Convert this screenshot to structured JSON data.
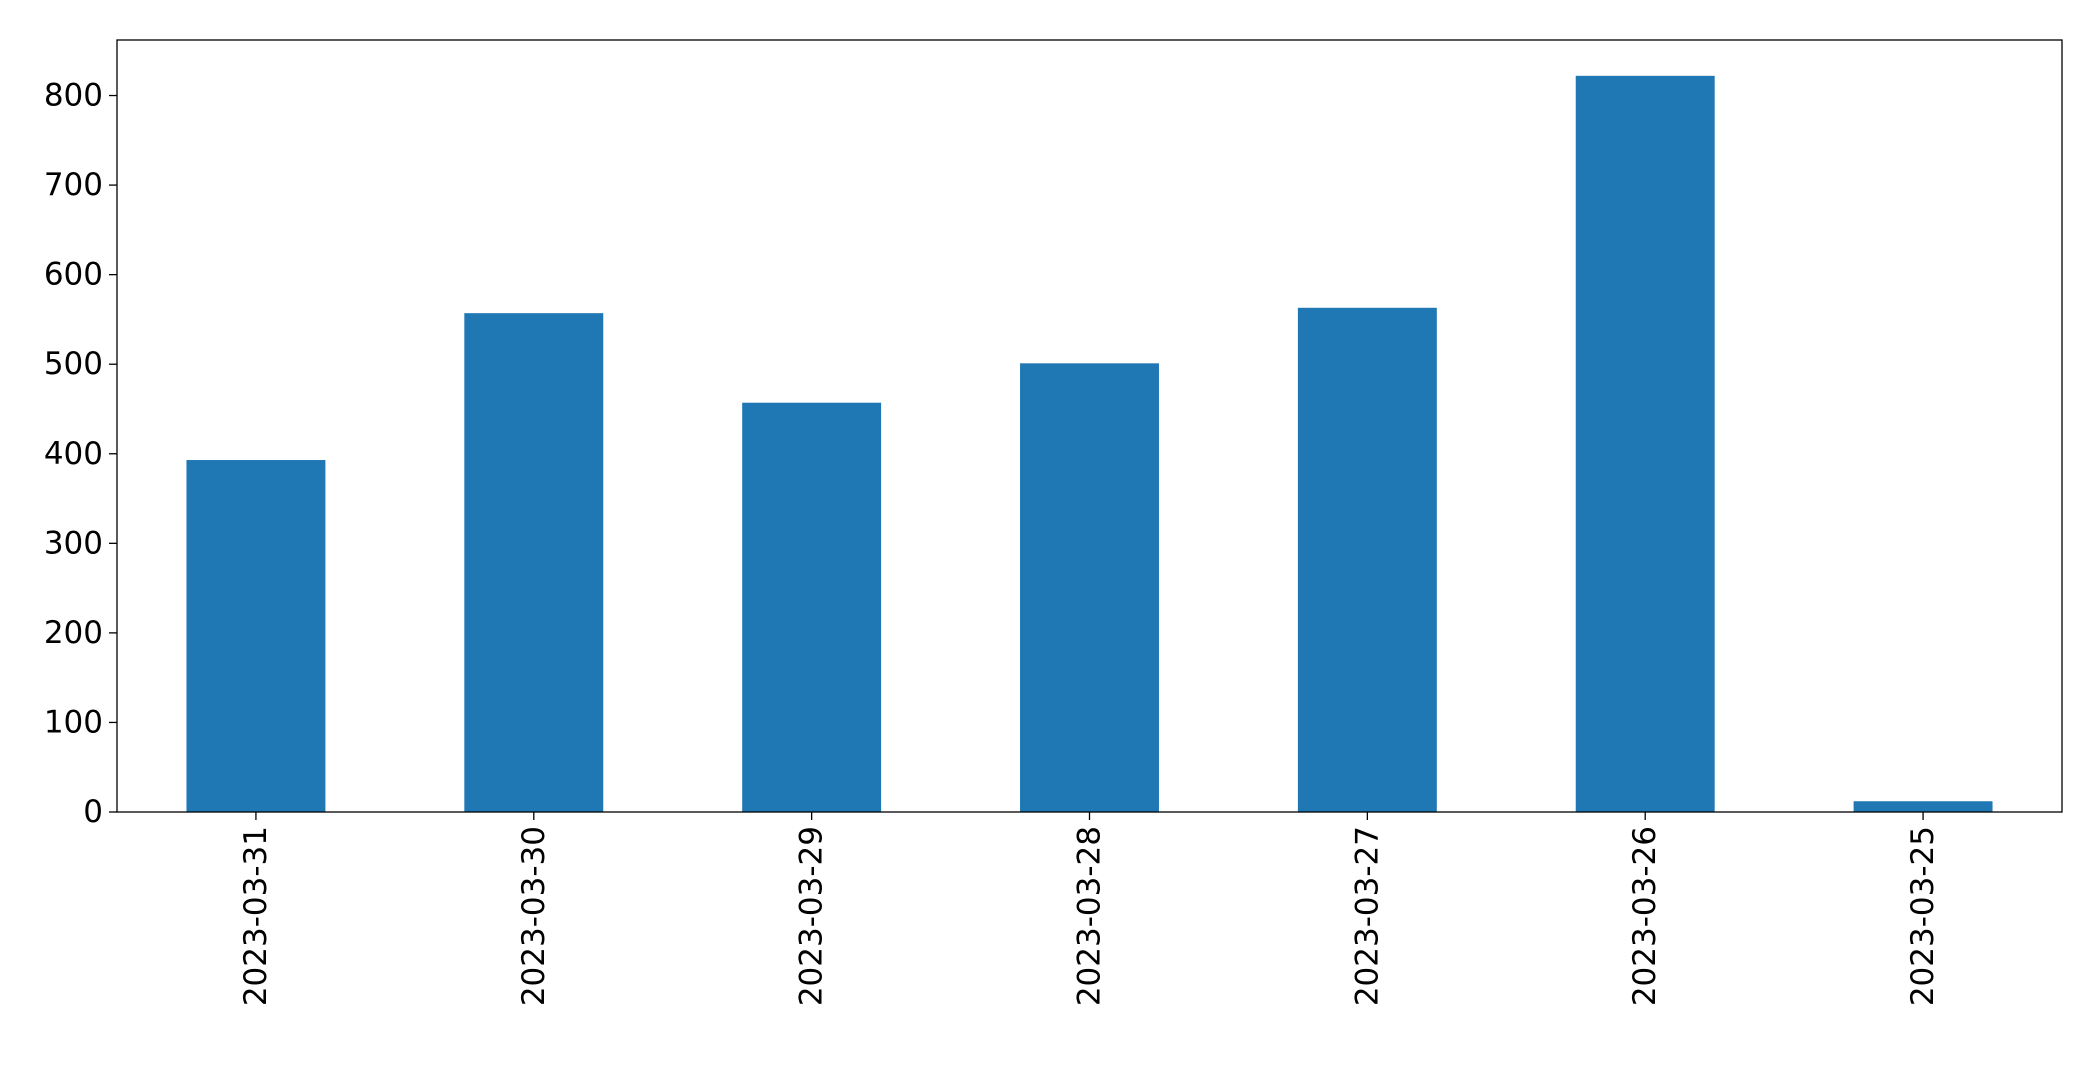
{
  "chart_data": {
    "type": "bar",
    "title": "",
    "xlabel": "",
    "ylabel": "",
    "categories": [
      "2023-03-31",
      "2023-03-30",
      "2023-03-29",
      "2023-03-28",
      "2023-03-27",
      "2023-03-26",
      "2023-03-25"
    ],
    "values": [
      393,
      557,
      457,
      501,
      563,
      822,
      12
    ],
    "ylim": [
      0,
      862
    ],
    "yticks": [
      0,
      100,
      200,
      300,
      400,
      500,
      600,
      700,
      800
    ],
    "ytick_labels": [
      "0",
      "100",
      "200",
      "300",
      "400",
      "500",
      "600",
      "700",
      "800"
    ],
    "xtick_rotation": "vertical",
    "bar_color": "#1f77b4",
    "grid": false,
    "legend": "none"
  }
}
